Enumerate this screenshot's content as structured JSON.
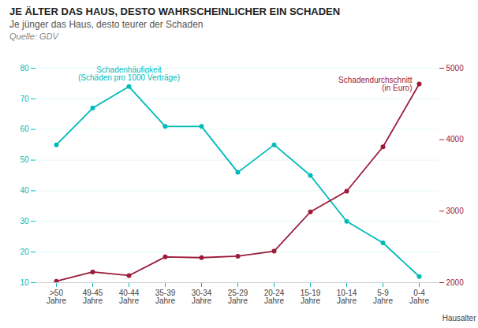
{
  "chart_data": {
    "type": "line",
    "title": "JE ÄLTER DAS HAUS, DESTO WAHRSCHEINLICHER EIN SCHADEN",
    "subtitle": "Je jünger das Haus, desto teurer der Schaden",
    "source": "Quelle: GDV",
    "xlabel": "Hausalter",
    "categories": [
      ">50\nJahre",
      "49-45\nJahre",
      "40-44\nJahre",
      "35-39\nJahre",
      "30-34\nJahre",
      "25-29\nJahre",
      "20-24\nJahre",
      "15-19\nJahre",
      "10-14\nJahre",
      "5-9\nJahre",
      "0-4\nJahre"
    ],
    "series": [
      {
        "name": "Schadenhäufigkeit\n(Schäden pro 1000 Verträge)",
        "color": "#00BABA",
        "marker": "circle",
        "values": [
          55,
          67,
          74,
          61,
          61,
          46,
          55,
          45,
          30,
          23,
          12
        ]
      },
      {
        "name": "Schadendurchschnitt\n(in Euro)",
        "color": "#9B1B3A",
        "marker": "circle",
        "axis": "y2",
        "values": [
          2020,
          2150,
          2100,
          2360,
          2350,
          2370,
          2440,
          2990,
          3280,
          3900,
          4780
        ]
      }
    ],
    "ylim": [
      10,
      80
    ],
    "yticks": [
      10,
      20,
      30,
      40,
      50,
      60,
      70,
      80
    ],
    "y2lim": [
      2000,
      5000
    ],
    "y2ticks": [
      2000,
      3000,
      4000,
      5000
    ],
    "grid": true
  }
}
